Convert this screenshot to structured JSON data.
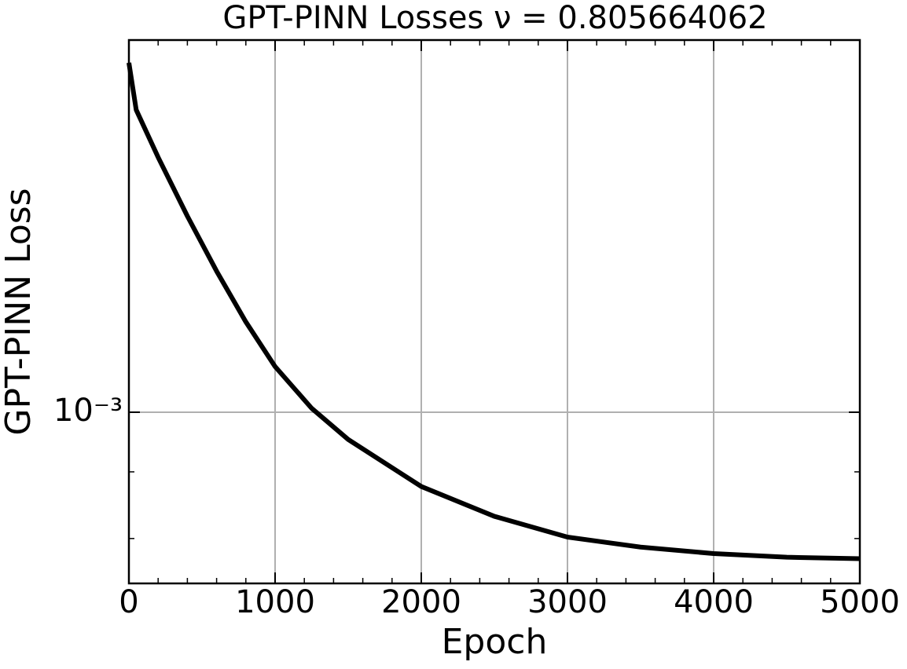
{
  "chart_data": {
    "type": "line",
    "title": "GPT-PINN Losses ν = 0.805664062",
    "xlabel": "Epoch",
    "ylabel": "GPT-PINN Loss",
    "x": [
      0,
      50,
      200,
      400,
      600,
      800,
      1000,
      1250,
      1500,
      2000,
      2500,
      3000,
      3500,
      4000,
      4500,
      5000
    ],
    "series": [
      {
        "name": "GPT-PINN Loss",
        "color": "#000000",
        "values": [
          0.001854,
          0.001706,
          0.001569,
          0.001414,
          0.001283,
          0.001173,
          0.001084,
          0.001007,
          0.000953,
          0.000877,
          0.000832,
          0.000802,
          0.000788,
          0.000779,
          0.000774,
          0.000772
        ]
      }
    ],
    "xlim": [
      0,
      5000
    ],
    "xticks": [
      0,
      1000,
      2000,
      3000,
      4000,
      5000
    ],
    "xminorticks": [
      200,
      400,
      600,
      800,
      1200,
      1400,
      1600,
      1800,
      2200,
      2400,
      2600,
      2800,
      3200,
      3400,
      3600,
      3800,
      4200,
      4400,
      4600,
      4800
    ],
    "ylim": [
      0.000739,
      0.00193
    ],
    "yscale": "log",
    "yticks": [
      {
        "value": 0.001,
        "label": "10⁻³"
      }
    ],
    "yminorticks": [
      0.0008,
      0.0009
    ],
    "grid": true
  }
}
